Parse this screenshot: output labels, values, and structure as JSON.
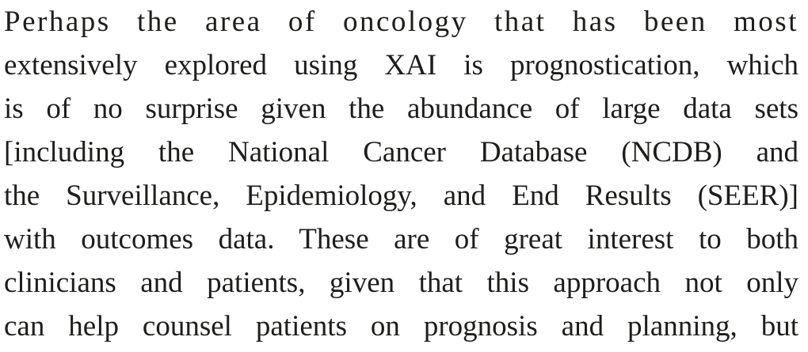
{
  "document": {
    "lines": [
      "Perhaps the area of oncology that has been most",
      "extensively explored using XAI is prognostication, which",
      "is of no surprise given the abundance of large data sets",
      "[including the National Cancer Database (NCDB) and",
      "the Surveillance, Epidemiology, and End Results (SEER)]",
      "with outcomes data. These are of great interest to both",
      "clinicians and patients, given that this approach not only",
      "can help counsel patients on prognosis and planning, but"
    ]
  }
}
